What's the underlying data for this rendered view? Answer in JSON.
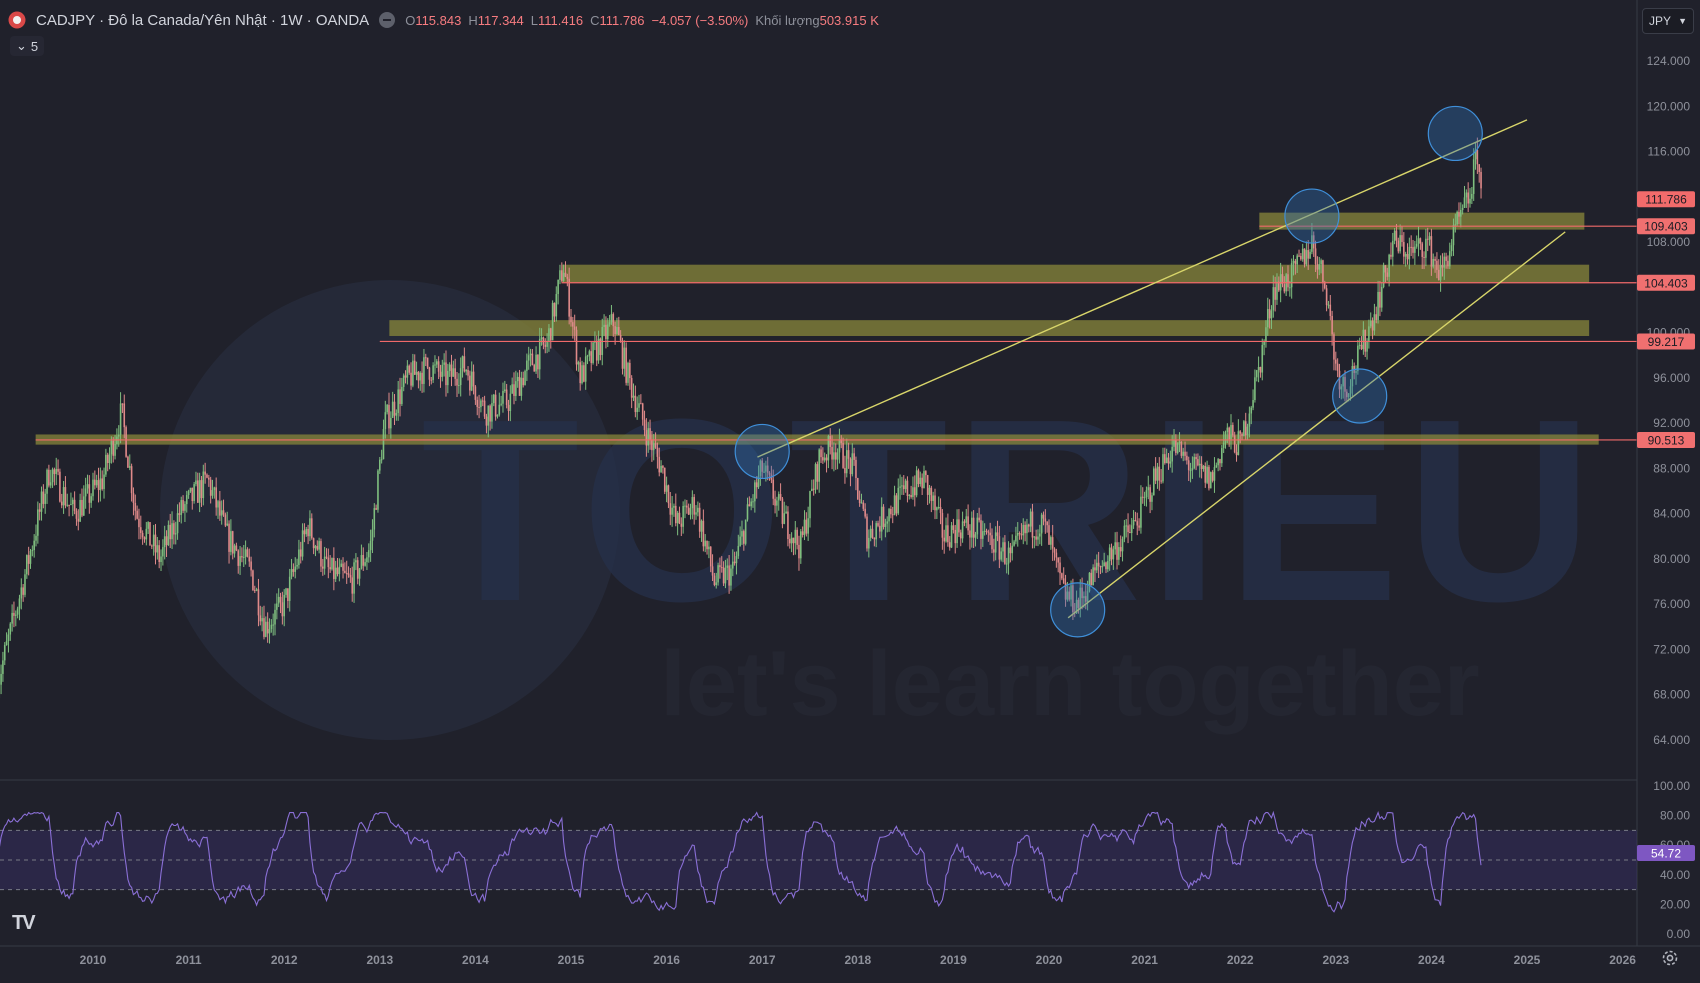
{
  "header": {
    "symbol_line": "CADJPY · Đô la Canada/Yên Nhật · 1W · OANDA",
    "open_key": "O",
    "open": "115.843",
    "high_key": "H",
    "high": "117.344",
    "low_key": "L",
    "low": "111.416",
    "close_key": "C",
    "close": "111.786",
    "change": "−4.057 (−3.50%)",
    "volume_label": "Khối lượng",
    "volume": "503.915 K"
  },
  "indicators_toggle": "5",
  "currency": "JPY",
  "watermark": {
    "brand": "TOTRIEU",
    "slogan": "let's learn together"
  },
  "colors": {
    "background": "#20212b",
    "up_candle": "#7fbf7f",
    "down_candle": "#e08a8a",
    "zone_fill": "#8c8b3a",
    "trendline": "#d8d56a",
    "level_line": "#f06a6a",
    "circle": "#2f6fb3",
    "rsi_line": "#8a6fd6",
    "rsi_band": "#3a2f6b"
  },
  "chart_data": [
    {
      "type": "candlestick",
      "title": "CADJPY · Đô la Canada/Yên Nhật · 1W · OANDA",
      "y_axis_labels": [
        "124.000",
        "120.000",
        "116.000",
        "108.000",
        "100.000",
        "96.000",
        "92.000",
        "88.000",
        "84.000",
        "80.000",
        "76.000",
        "72.000",
        "68.000",
        "64.000"
      ],
      "y_axis_values": [
        124,
        120,
        116,
        108,
        100,
        96,
        92,
        88,
        84,
        80,
        76,
        72,
        68,
        64
      ],
      "x_axis_labels": [
        "2010",
        "2011",
        "2012",
        "2013",
        "2014",
        "2015",
        "2016",
        "2017",
        "2018",
        "2019",
        "2020",
        "2021",
        "2022",
        "2023",
        "2024",
        "2025",
        "2026"
      ],
      "x_axis_values": [
        2010,
        2011,
        2012,
        2013,
        2014,
        2015,
        2016,
        2017,
        2018,
        2019,
        2020,
        2021,
        2022,
        2023,
        2024,
        2025,
        2026
      ],
      "xlim": [
        2009.0,
        2026.0
      ],
      "ylim": [
        61,
        127
      ],
      "price_path": [
        [
          2009.0,
          69
        ],
        [
          2009.3,
          79
        ],
        [
          2009.55,
          88
        ],
        [
          2009.8,
          84
        ],
        [
          2010.1,
          87
        ],
        [
          2010.3,
          93
        ],
        [
          2010.45,
          84
        ],
        [
          2010.7,
          80
        ],
        [
          2010.9,
          84
        ],
        [
          2011.2,
          87
        ],
        [
          2011.4,
          82
        ],
        [
          2011.65,
          79
        ],
        [
          2011.8,
          74
        ],
        [
          2012.0,
          76
        ],
        [
          2012.25,
          83
        ],
        [
          2012.45,
          79
        ],
        [
          2012.7,
          78
        ],
        [
          2012.9,
          81
        ],
        [
          2013.05,
          92
        ],
        [
          2013.3,
          96
        ],
        [
          2013.5,
          97
        ],
        [
          2013.7,
          96
        ],
        [
          2013.9,
          97
        ],
        [
          2014.1,
          93
        ],
        [
          2014.35,
          94
        ],
        [
          2014.55,
          97
        ],
        [
          2014.75,
          99
        ],
        [
          2014.92,
          106
        ],
        [
          2015.1,
          96
        ],
        [
          2015.3,
          99
        ],
        [
          2015.45,
          101
        ],
        [
          2015.6,
          96
        ],
        [
          2015.8,
          91
        ],
        [
          2015.95,
          88
        ],
        [
          2016.1,
          83
        ],
        [
          2016.3,
          85
        ],
        [
          2016.5,
          78
        ],
        [
          2016.7,
          79
        ],
        [
          2016.85,
          84
        ],
        [
          2017.0,
          88
        ],
        [
          2017.2,
          84
        ],
        [
          2017.4,
          81
        ],
        [
          2017.6,
          89
        ],
        [
          2017.75,
          90
        ],
        [
          2017.95,
          88
        ],
        [
          2018.1,
          82
        ],
        [
          2018.3,
          84
        ],
        [
          2018.5,
          86
        ],
        [
          2018.7,
          87
        ],
        [
          2018.9,
          82
        ],
        [
          2019.1,
          83
        ],
        [
          2019.35,
          82
        ],
        [
          2019.6,
          80
        ],
        [
          2019.8,
          83
        ],
        [
          2019.95,
          83
        ],
        [
          2020.15,
          77
        ],
        [
          2020.3,
          76
        ],
        [
          2020.5,
          79
        ],
        [
          2020.7,
          81
        ],
        [
          2020.9,
          83
        ],
        [
          2021.1,
          87
        ],
        [
          2021.3,
          90
        ],
        [
          2021.5,
          88
        ],
        [
          2021.7,
          87
        ],
        [
          2021.85,
          91
        ],
        [
          2022.0,
          90
        ],
        [
          2022.2,
          97
        ],
        [
          2022.35,
          104
        ],
        [
          2022.55,
          105
        ],
        [
          2022.75,
          108
        ],
        [
          2022.9,
          104
        ],
        [
          2023.0,
          97
        ],
        [
          2023.1,
          95
        ],
        [
          2023.25,
          98
        ],
        [
          2023.45,
          103
        ],
        [
          2023.6,
          108
        ],
        [
          2023.8,
          107
        ],
        [
          2023.95,
          108
        ],
        [
          2024.1,
          105
        ],
        [
          2024.25,
          109
        ],
        [
          2024.4,
          112
        ],
        [
          2024.48,
          116
        ],
        [
          2024.52,
          112
        ]
      ],
      "support_resistance_zones": [
        {
          "from_year": 2009.4,
          "to_year": 2025.75,
          "top": 91.0,
          "bottom": 90.1
        },
        {
          "from_year": 2013.1,
          "to_year": 2025.65,
          "top": 101.1,
          "bottom": 99.7
        },
        {
          "from_year": 2014.9,
          "to_year": 2025.65,
          "top": 106.0,
          "bottom": 104.4
        },
        {
          "from_year": 2022.2,
          "to_year": 2025.6,
          "top": 110.6,
          "bottom": 109.1
        }
      ],
      "horizontal_levels": [
        {
          "value": 109.403,
          "label": "109.403",
          "from_year": 2022.2
        },
        {
          "value": 104.403,
          "label": "104.403",
          "from_year": 2014.9
        },
        {
          "value": 99.217,
          "label": "99.217",
          "from_year": 2013.0
        },
        {
          "value": 90.513,
          "label": "90.513",
          "from_year": 2009.4
        }
      ],
      "last_price": {
        "value": 111.786,
        "label": "111.786"
      },
      "trendlines": [
        {
          "name": "upper",
          "x1": 2016.95,
          "y1": 89.0,
          "x2": 2025.0,
          "y2": 118.8
        },
        {
          "name": "lower",
          "x1": 2020.2,
          "y1": 74.8,
          "x2": 2025.4,
          "y2": 108.9
        }
      ],
      "highlight_circles": [
        {
          "x": 2017.0,
          "y": 89.5
        },
        {
          "x": 2020.3,
          "y": 75.5
        },
        {
          "x": 2022.75,
          "y": 110.3
        },
        {
          "x": 2023.25,
          "y": 94.4
        },
        {
          "x": 2024.25,
          "y": 117.6
        }
      ]
    },
    {
      "type": "line",
      "panel": "RSI",
      "y_axis_labels": [
        "100.00",
        "80.00",
        "60.00",
        "40.00",
        "20.00",
        "0.00"
      ],
      "y_axis_values": [
        100,
        80,
        60,
        40,
        20,
        0
      ],
      "ylim": [
        0,
        100
      ],
      "upper_band": 70,
      "lower_band": 30,
      "mid_line": 50,
      "last_value": {
        "value": 54.72,
        "label": "54.72"
      }
    }
  ]
}
